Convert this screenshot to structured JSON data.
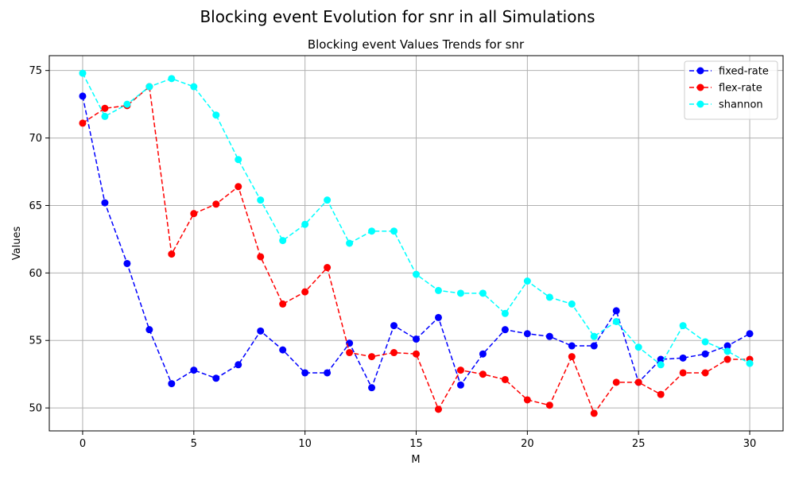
{
  "chart_data": {
    "type": "line",
    "suptitle": "Blocking event Evolution for snr in all Simulations",
    "title": "Blocking event Values Trends for snr",
    "xlabel": "M",
    "ylabel": "Values",
    "xlim": [
      -1.5,
      31.5
    ],
    "ylim": [
      48.3,
      76.1
    ],
    "xticks": [
      0,
      5,
      10,
      15,
      20,
      25,
      30
    ],
    "yticks": [
      50,
      55,
      60,
      65,
      70,
      75
    ],
    "grid": true,
    "legend_position": "top-right",
    "line_style": "dashed",
    "marker": "circle",
    "x": [
      0,
      1,
      2,
      3,
      4,
      5,
      6,
      7,
      8,
      9,
      10,
      11,
      12,
      13,
      14,
      15,
      16,
      17,
      18,
      19,
      20,
      21,
      22,
      23,
      24,
      25,
      26,
      27,
      28,
      29,
      30
    ],
    "series": [
      {
        "name": "fixed-rate",
        "color": "#0000ff",
        "values": [
          73.1,
          65.2,
          60.7,
          55.8,
          51.8,
          52.8,
          52.2,
          53.2,
          55.7,
          54.3,
          52.6,
          52.6,
          54.8,
          51.5,
          56.1,
          55.1,
          56.7,
          51.7,
          54.0,
          55.8,
          55.5,
          55.3,
          54.6,
          54.6,
          57.2,
          51.9,
          53.6,
          53.7,
          54.0,
          54.6,
          55.5
        ]
      },
      {
        "name": "flex-rate",
        "color": "#ff0000",
        "values": [
          71.1,
          72.2,
          72.4,
          73.8,
          61.4,
          64.4,
          65.1,
          66.4,
          61.2,
          57.7,
          58.6,
          60.4,
          54.1,
          53.8,
          54.1,
          54.0,
          49.9,
          52.8,
          52.5,
          52.1,
          50.6,
          50.2,
          53.8,
          49.6,
          51.9,
          51.9,
          51.0,
          52.6,
          52.6,
          53.6,
          53.6
        ]
      },
      {
        "name": "shannon",
        "color": "#00ffff",
        "values": [
          74.8,
          71.6,
          72.5,
          73.8,
          74.4,
          73.8,
          71.7,
          68.4,
          65.4,
          62.4,
          63.6,
          65.4,
          62.2,
          63.1,
          63.1,
          59.9,
          58.7,
          58.5,
          58.5,
          57.0,
          59.4,
          58.2,
          57.7,
          55.3,
          56.4,
          54.5,
          53.2,
          56.1,
          54.9,
          54.2,
          53.3
        ]
      }
    ]
  }
}
